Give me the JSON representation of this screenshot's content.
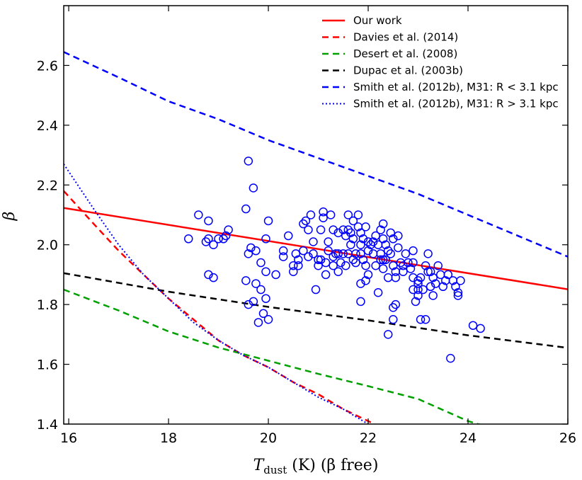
{
  "chart_data": {
    "type": "scatter",
    "title": "",
    "xlabel": "T_dust (K) (β free)",
    "xlabel_parts": {
      "main": "T",
      "sub": "dust",
      "rest": " (K) (β free)"
    },
    "ylabel": "β",
    "xlim": [
      15.9,
      26
    ],
    "ylim": [
      1.4,
      2.8
    ],
    "x_ticks": [
      16,
      18,
      20,
      22,
      24,
      26
    ],
    "y_ticks": [
      1.4,
      1.6,
      1.8,
      2.0,
      2.2,
      2.4,
      2.6
    ],
    "grid": false,
    "legend_position": "top-right",
    "points": {
      "name": "data",
      "color": "#0000ff",
      "marker": "open-circle",
      "xy": [
        [
          19.6,
          2.28
        ],
        [
          19.7,
          2.19
        ],
        [
          19.55,
          2.12
        ],
        [
          18.6,
          2.1
        ],
        [
          18.8,
          2.08
        ],
        [
          20.0,
          2.08
        ],
        [
          19.2,
          2.05
        ],
        [
          19.0,
          2.02
        ],
        [
          19.1,
          2.02
        ],
        [
          18.4,
          2.02
        ],
        [
          18.75,
          2.01
        ],
        [
          18.9,
          2.0
        ],
        [
          19.15,
          2.03
        ],
        [
          18.8,
          2.02
        ],
        [
          19.75,
          1.98
        ],
        [
          19.85,
          1.94
        ],
        [
          19.65,
          1.99
        ],
        [
          19.6,
          1.97
        ],
        [
          19.95,
          2.02
        ],
        [
          19.95,
          1.91
        ],
        [
          20.15,
          1.9
        ],
        [
          19.55,
          1.88
        ],
        [
          19.75,
          1.87
        ],
        [
          19.85,
          1.85
        ],
        [
          19.95,
          1.82
        ],
        [
          19.7,
          1.81
        ],
        [
          19.6,
          1.8
        ],
        [
          19.9,
          1.77
        ],
        [
          20.0,
          1.75
        ],
        [
          19.8,
          1.74
        ],
        [
          18.8,
          1.9
        ],
        [
          18.9,
          1.89
        ],
        [
          20.3,
          1.98
        ],
        [
          20.3,
          1.96
        ],
        [
          20.4,
          2.03
        ],
        [
          20.5,
          1.93
        ],
        [
          20.5,
          1.91
        ],
        [
          20.6,
          1.95
        ],
        [
          20.6,
          1.93
        ],
        [
          20.7,
          2.07
        ],
        [
          20.75,
          2.08
        ],
        [
          20.8,
          2.05
        ],
        [
          20.85,
          2.1
        ],
        [
          20.7,
          1.98
        ],
        [
          20.8,
          1.96
        ],
        [
          20.9,
          2.01
        ],
        [
          20.9,
          1.97
        ],
        [
          21.0,
          1.95
        ],
        [
          21.0,
          1.93
        ],
        [
          20.95,
          1.85
        ],
        [
          21.1,
          2.11
        ],
        [
          21.1,
          2.09
        ],
        [
          21.25,
          2.1
        ],
        [
          21.2,
          2.01
        ],
        [
          21.2,
          1.98
        ],
        [
          21.15,
          1.94
        ],
        [
          21.15,
          1.9
        ],
        [
          21.3,
          2.05
        ],
        [
          21.3,
          1.96
        ],
        [
          21.3,
          1.93
        ],
        [
          21.35,
          1.97
        ],
        [
          21.4,
          1.97
        ],
        [
          21.4,
          2.04
        ],
        [
          21.45,
          1.94
        ],
        [
          21.5,
          2.05
        ],
        [
          21.5,
          1.97
        ],
        [
          21.55,
          2.03
        ],
        [
          21.55,
          1.93
        ],
        [
          21.6,
          2.1
        ],
        [
          21.6,
          2.05
        ],
        [
          21.65,
          2.04
        ],
        [
          21.65,
          2.0
        ],
        [
          21.7,
          2.08
        ],
        [
          21.7,
          2.02
        ],
        [
          21.75,
          1.97
        ],
        [
          21.75,
          1.94
        ],
        [
          21.8,
          2.1
        ],
        [
          21.8,
          2.06
        ],
        [
          21.85,
          2.04
        ],
        [
          21.85,
          2.0
        ],
        [
          21.85,
          1.97
        ],
        [
          21.9,
          2.02
        ],
        [
          21.9,
          1.95
        ],
        [
          21.95,
          2.06
        ],
        [
          21.95,
          1.93
        ],
        [
          22.0,
          2.01
        ],
        [
          22.0,
          1.98
        ],
        [
          22.0,
          1.9
        ],
        [
          21.95,
          1.88
        ],
        [
          21.85,
          1.87
        ],
        [
          21.85,
          1.81
        ],
        [
          22.05,
          2.0
        ],
        [
          22.1,
          2.01
        ],
        [
          22.1,
          1.97
        ],
        [
          22.15,
          1.93
        ],
        [
          22.2,
          2.0
        ],
        [
          22.2,
          1.84
        ],
        [
          22.25,
          2.05
        ],
        [
          22.25,
          1.97
        ],
        [
          22.3,
          2.02
        ],
        [
          22.3,
          1.95
        ],
        [
          22.3,
          1.92
        ],
        [
          22.35,
          2.0
        ],
        [
          22.35,
          1.95
        ],
        [
          22.3,
          2.07
        ],
        [
          22.4,
          1.98
        ],
        [
          22.4,
          1.89
        ],
        [
          22.4,
          1.7
        ],
        [
          22.45,
          2.04
        ],
        [
          22.45,
          1.97
        ],
        [
          22.5,
          2.02
        ],
        [
          22.5,
          1.93
        ],
        [
          22.5,
          1.79
        ],
        [
          22.55,
          1.8
        ],
        [
          22.5,
          1.75
        ],
        [
          22.55,
          1.89
        ],
        [
          22.6,
          2.03
        ],
        [
          22.6,
          1.99
        ],
        [
          22.65,
          1.94
        ],
        [
          22.7,
          1.93
        ],
        [
          22.7,
          1.91
        ],
        [
          22.75,
          1.97
        ],
        [
          22.8,
          1.94
        ],
        [
          22.85,
          1.92
        ],
        [
          22.9,
          1.98
        ],
        [
          22.9,
          1.94
        ],
        [
          22.9,
          1.89
        ],
        [
          22.9,
          1.85
        ],
        [
          22.95,
          1.81
        ],
        [
          23.0,
          1.83
        ],
        [
          23.0,
          1.85
        ],
        [
          23.0,
          1.87
        ],
        [
          23.05,
          1.75
        ],
        [
          23.15,
          1.75
        ],
        [
          23.0,
          1.88
        ],
        [
          23.05,
          1.89
        ],
        [
          23.1,
          1.85
        ],
        [
          23.15,
          1.93
        ],
        [
          23.2,
          1.97
        ],
        [
          23.2,
          1.91
        ],
        [
          23.25,
          1.86
        ],
        [
          23.3,
          1.83
        ],
        [
          23.3,
          1.89
        ],
        [
          23.35,
          1.87
        ],
        [
          23.4,
          1.93
        ],
        [
          23.45,
          1.9
        ],
        [
          23.5,
          1.86
        ],
        [
          23.55,
          1.88
        ],
        [
          23.6,
          1.9
        ],
        [
          23.7,
          1.88
        ],
        [
          23.75,
          1.86
        ],
        [
          23.8,
          1.84
        ],
        [
          23.8,
          1.83
        ],
        [
          23.85,
          1.88
        ],
        [
          23.65,
          1.62
        ],
        [
          24.1,
          1.73
        ],
        [
          24.25,
          1.72
        ],
        [
          21.05,
          1.95
        ],
        [
          21.05,
          2.05
        ],
        [
          21.4,
          1.91
        ],
        [
          21.7,
          1.95
        ],
        [
          22.15,
          2.03
        ],
        [
          22.25,
          1.95
        ],
        [
          22.55,
          1.91
        ],
        [
          23.25,
          1.91
        ],
        [
          21.6,
          1.97
        ],
        [
          20.55,
          1.97
        ]
      ]
    },
    "series": [
      {
        "name": "Our work",
        "color": "#ff0000",
        "style": "solid",
        "width": 2.5,
        "x": [
          15.9,
          26.0
        ],
        "y": [
          2.123,
          1.851
        ]
      },
      {
        "name": "Davies et al. (2014)",
        "color": "#ff0000",
        "style": "dashed",
        "width": 2.5,
        "x": [
          15.9,
          16.5,
          17,
          17.5,
          18,
          18.5,
          19,
          19.5,
          20,
          20.5,
          21,
          21.5,
          22,
          22.5
        ],
        "y": [
          2.18,
          2.07,
          1.98,
          1.9,
          1.82,
          1.75,
          1.68,
          1.63,
          1.59,
          1.54,
          1.5,
          1.45,
          1.41,
          1.37
        ]
      },
      {
        "name": "Desert et al. (2008)",
        "color": "#00a000",
        "style": "dashed",
        "width": 2.5,
        "x": [
          15.9,
          17,
          18,
          19,
          20,
          21,
          22,
          23,
          24,
          25,
          26
        ],
        "y": [
          1.85,
          1.78,
          1.71,
          1.656,
          1.612,
          1.568,
          1.527,
          1.484,
          1.41,
          1.36,
          1.32
        ]
      },
      {
        "name": "Dupac et al. (2003b)",
        "color": "#000000",
        "style": "dashed",
        "width": 2.5,
        "x": [
          15.9,
          18,
          20,
          22,
          24,
          26
        ],
        "y": [
          1.905,
          1.843,
          1.792,
          1.747,
          1.697,
          1.655
        ]
      },
      {
        "name": "Smith et al. (2012b), M31: R < 3.1 kpc",
        "color": "#0000ff",
        "style": "dashed",
        "width": 2.5,
        "x": [
          15.9,
          17,
          18,
          19,
          20,
          21,
          22,
          23,
          24,
          25,
          26
        ],
        "y": [
          2.645,
          2.56,
          2.48,
          2.42,
          2.35,
          2.29,
          2.23,
          2.17,
          2.1,
          2.03,
          1.96
        ]
      },
      {
        "name": "Smith et al. (2012b), M31: R > 3.1 kpc",
        "color": "#0000ff",
        "style": "dotted",
        "width": 2.0,
        "x": [
          15.9,
          16.5,
          17,
          17.5,
          18,
          18.5,
          19,
          19.5,
          20,
          20.5,
          21,
          21.5,
          22
        ],
        "y": [
          2.27,
          2.12,
          2.0,
          1.9,
          1.82,
          1.74,
          1.68,
          1.63,
          1.59,
          1.54,
          1.49,
          1.45,
          1.4
        ]
      }
    ]
  }
}
